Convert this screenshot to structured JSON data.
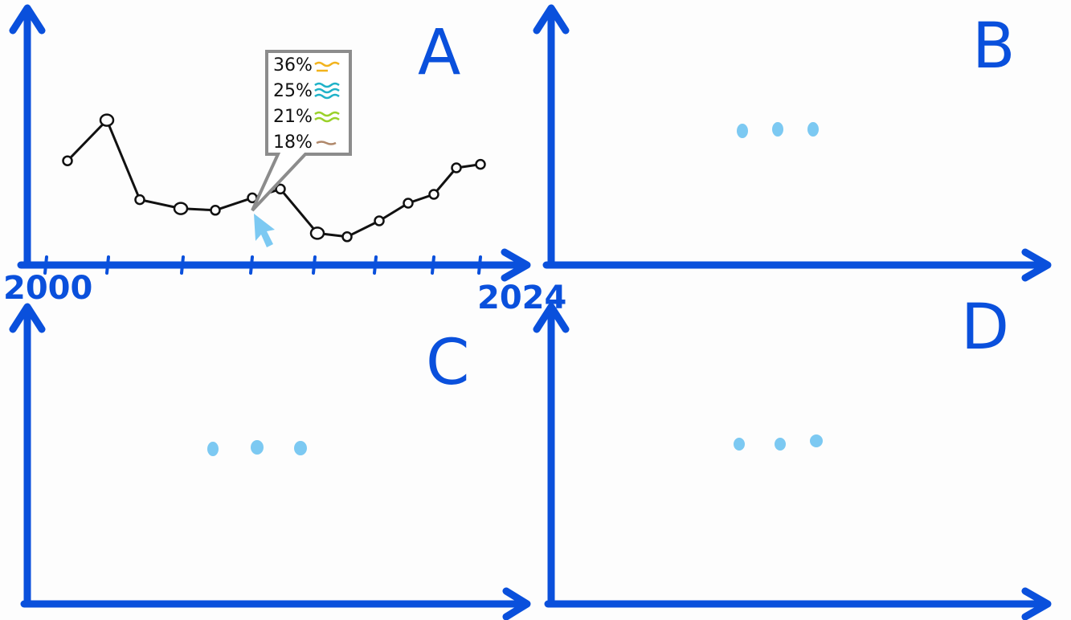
{
  "panels": [
    {
      "id": "A",
      "label": "A"
    },
    {
      "id": "B",
      "label": "B"
    },
    {
      "id": "C",
      "label": "C"
    },
    {
      "id": "D",
      "label": "D"
    }
  ],
  "axis_a": {
    "start_label": "2000",
    "end_label": "2024"
  },
  "placeholder_dots": "• • •",
  "series": [
    0.59,
    0.82,
    0.37,
    0.32,
    0.31,
    0.38,
    0.43,
    0.18,
    0.16,
    0.25,
    0.35,
    0.4,
    0.55,
    0.57
  ],
  "tooltip": {
    "items": [
      {
        "pct": "36%",
        "color": "#f2b31c"
      },
      {
        "pct": "25%",
        "color": "#1fb2c8"
      },
      {
        "pct": "21%",
        "color": "#9ad12a"
      },
      {
        "pct": "18%",
        "color": "#b0886a"
      }
    ]
  },
  "colors": {
    "axis": "#0a50dc",
    "dots": "#7cc9f2",
    "tooltip_border": "#8c8c8c"
  }
}
